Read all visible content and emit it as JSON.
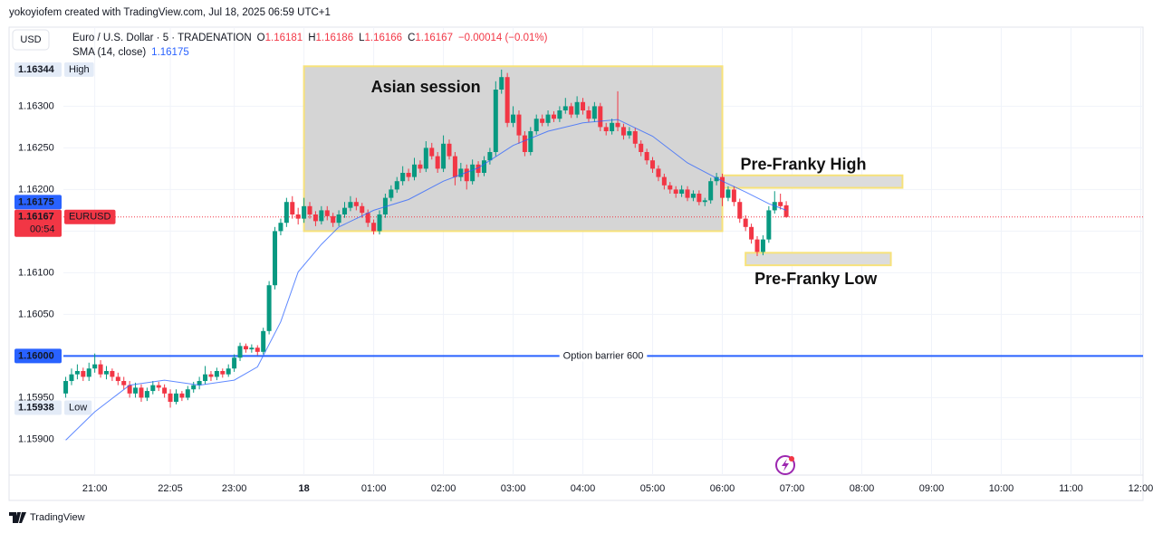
{
  "chart_data": {
    "type": "candlestick",
    "watermark": "yokoyiofem created with TradingView.com, Jul 18, 2025 06:59 UTC+1",
    "currency": "USD",
    "legend": {
      "symbol": "Euro / U.S. Dollar · 5 · TRADENATION",
      "ohlc": [
        {
          "key": "O",
          "value": 1.16181
        },
        {
          "key": "H",
          "value": 1.16186
        },
        {
          "key": "L",
          "value": 1.16166
        },
        {
          "key": "C",
          "value": 1.16167
        }
      ],
      "change": "−0.00014 (−0.01%)",
      "sma_value": 1.16175
    },
    "footer": "TradingView",
    "up_color": "#089981",
    "down_color": "#f23645",
    "grid": true,
    "xlim": [
      "20:33",
      "12:02"
    ],
    "ylim": [
      1.15857,
      1.16395
    ],
    "yticks": [
      {
        "value": 1.159,
        "label": "1.15900"
      },
      {
        "value": 1.1595,
        "label": "1.15950"
      },
      {
        "value": 1.16,
        "label": "1.16000"
      },
      {
        "value": 1.1605,
        "label": "1.16050"
      },
      {
        "value": 1.161,
        "label": "1.16100"
      },
      {
        "value": 1.1615,
        "label": "1.16150"
      },
      {
        "value": 1.162,
        "label": "1.16200"
      },
      {
        "value": 1.1625,
        "label": "1.16250"
      },
      {
        "value": 1.163,
        "label": "1.16300"
      }
    ],
    "xticks": [
      "21:00",
      "22:05",
      "23:00",
      {
        "value": "00:00",
        "label": "18"
      },
      "01:00",
      "02:00",
      "03:00",
      "04:00",
      "05:00",
      "06:00",
      "07:00",
      "08:00",
      "09:00",
      "10:00",
      "11:00",
      "12:00"
    ],
    "times": [
      "20:35",
      "20:40",
      "20:45",
      "20:50",
      "20:55",
      "21:00",
      "21:05",
      "21:10",
      "21:15",
      "21:20",
      "21:25",
      "21:30",
      "21:35",
      "21:40",
      "21:45",
      "21:50",
      "21:55",
      "22:00",
      "22:05",
      "22:10",
      "22:15",
      "22:20",
      "22:25",
      "22:30",
      "22:35",
      "22:40",
      "22:45",
      "22:50",
      "22:55",
      "23:00",
      "23:05",
      "23:10",
      "23:15",
      "23:20",
      "23:25",
      "23:30",
      "23:35",
      "23:40",
      "23:45",
      "23:50",
      "23:55",
      "00:00",
      "00:05",
      "00:10",
      "00:15",
      "00:20",
      "00:25",
      "00:30",
      "00:35",
      "00:40",
      "00:45",
      "00:50",
      "00:55",
      "01:00",
      "01:05",
      "01:10",
      "01:15",
      "01:20",
      "01:25",
      "01:30",
      "01:35",
      "01:40",
      "01:45",
      "01:50",
      "01:55",
      "02:00",
      "02:05",
      "02:10",
      "02:15",
      "02:20",
      "02:25",
      "02:30",
      "02:35",
      "02:40",
      "02:45",
      "02:50",
      "02:55",
      "03:00",
      "03:05",
      "03:10",
      "03:15",
      "03:20",
      "03:25",
      "03:30",
      "03:35",
      "03:40",
      "03:45",
      "03:50",
      "03:55",
      "04:00",
      "04:05",
      "04:10",
      "04:15",
      "04:20",
      "04:25",
      "04:30",
      "04:35",
      "04:40",
      "04:45",
      "04:50",
      "04:55",
      "05:00",
      "05:05",
      "05:10",
      "05:15",
      "05:20",
      "05:25",
      "05:30",
      "05:35",
      "05:40",
      "05:45",
      "05:50",
      "05:55",
      "06:00",
      "06:05",
      "06:10",
      "06:15",
      "06:20",
      "06:25",
      "06:30",
      "06:35",
      "06:40",
      "06:45",
      "06:50",
      "06:55"
    ],
    "ohlc": [
      [
        1.15955,
        1.15975,
        1.1595,
        1.1597
      ],
      [
        1.1597,
        1.15985,
        1.15965,
        1.15978
      ],
      [
        1.15978,
        1.1599,
        1.15972,
        1.15982
      ],
      [
        1.15982,
        1.15986,
        1.1597,
        1.15975
      ],
      [
        1.15975,
        1.15992,
        1.1597,
        1.15985
      ],
      [
        1.15985,
        1.16003,
        1.1598,
        1.1599
      ],
      [
        1.1599,
        1.15995,
        1.15974,
        1.15978
      ],
      [
        1.15978,
        1.15988,
        1.15972,
        1.15982
      ],
      [
        1.15982,
        1.15985,
        1.1597,
        1.15975
      ],
      [
        1.15975,
        1.1598,
        1.15965,
        1.1597
      ],
      [
        1.1597,
        1.15975,
        1.1596,
        1.15965
      ],
      [
        1.15965,
        1.1597,
        1.1595,
        1.15955
      ],
      [
        1.15955,
        1.15968,
        1.1595,
        1.15962
      ],
      [
        1.15962,
        1.15966,
        1.15945,
        1.1595
      ],
      [
        1.1595,
        1.15962,
        1.15946,
        1.15958
      ],
      [
        1.15958,
        1.1597,
        1.15954,
        1.15965
      ],
      [
        1.15965,
        1.15969,
        1.15958,
        1.15962
      ],
      [
        1.15962,
        1.15966,
        1.1595,
        1.15955
      ],
      [
        1.15955,
        1.1596,
        1.15938,
        1.15945
      ],
      [
        1.15945,
        1.1596,
        1.15942,
        1.15955
      ],
      [
        1.15955,
        1.15958,
        1.15946,
        1.1595
      ],
      [
        1.1595,
        1.15964,
        1.15947,
        1.1596
      ],
      [
        1.1596,
        1.15969,
        1.15956,
        1.15965
      ],
      [
        1.15965,
        1.15975,
        1.1596,
        1.1597
      ],
      [
        1.1597,
        1.15988,
        1.15966,
        1.15978
      ],
      [
        1.15978,
        1.15982,
        1.1597,
        1.15975
      ],
      [
        1.15975,
        1.15986,
        1.15971,
        1.15982
      ],
      [
        1.15982,
        1.15985,
        1.15974,
        1.15978
      ],
      [
        1.15978,
        1.1599,
        1.15975,
        1.15985
      ],
      [
        1.15985,
        1.16002,
        1.15981,
        1.15998
      ],
      [
        1.15998,
        1.16016,
        1.15994,
        1.16012
      ],
      [
        1.16012,
        1.16015,
        1.16004,
        1.16008
      ],
      [
        1.16008,
        1.16014,
        1.16004,
        1.1601
      ],
      [
        1.1601,
        1.16013,
        1.16001,
        1.16005
      ],
      [
        1.16005,
        1.16034,
        1.16002,
        1.1603
      ],
      [
        1.1603,
        1.1609,
        1.16026,
        1.16085
      ],
      [
        1.16085,
        1.16155,
        1.1608,
        1.1615
      ],
      [
        1.1615,
        1.16165,
        1.16145,
        1.1616
      ],
      [
        1.1616,
        1.1619,
        1.16155,
        1.16185
      ],
      [
        1.16185,
        1.16192,
        1.16165,
        1.1617
      ],
      [
        1.1617,
        1.16178,
        1.16158,
        1.16165
      ],
      [
        1.16165,
        1.1619,
        1.1616,
        1.1618
      ],
      [
        1.1618,
        1.16185,
        1.16165,
        1.1617
      ],
      [
        1.1617,
        1.16174,
        1.16156,
        1.16162
      ],
      [
        1.16162,
        1.1618,
        1.16158,
        1.16175
      ],
      [
        1.16175,
        1.1618,
        1.16163,
        1.16168
      ],
      [
        1.16168,
        1.16172,
        1.16155,
        1.1616
      ],
      [
        1.1616,
        1.16175,
        1.16156,
        1.1617
      ],
      [
        1.1617,
        1.16185,
        1.16166,
        1.16178
      ],
      [
        1.16178,
        1.16192,
        1.16174,
        1.16185
      ],
      [
        1.16185,
        1.1619,
        1.16175,
        1.1618
      ],
      [
        1.1618,
        1.16184,
        1.16166,
        1.16172
      ],
      [
        1.16172,
        1.16176,
        1.16155,
        1.1616
      ],
      [
        1.1616,
        1.16164,
        1.16146,
        1.1615
      ],
      [
        1.1615,
        1.16175,
        1.16146,
        1.1617
      ],
      [
        1.1617,
        1.16195,
        1.16166,
        1.1619
      ],
      [
        1.1619,
        1.16205,
        1.16186,
        1.162
      ],
      [
        1.162,
        1.16215,
        1.16196,
        1.1621
      ],
      [
        1.1621,
        1.16228,
        1.16205,
        1.1622
      ],
      [
        1.1622,
        1.16225,
        1.1621,
        1.16215
      ],
      [
        1.16215,
        1.16238,
        1.16211,
        1.1623
      ],
      [
        1.1623,
        1.16235,
        1.1622,
        1.16225
      ],
      [
        1.16225,
        1.16258,
        1.16221,
        1.1625
      ],
      [
        1.1625,
        1.16256,
        1.16236,
        1.1624
      ],
      [
        1.1624,
        1.16245,
        1.1622,
        1.16225
      ],
      [
        1.16225,
        1.16265,
        1.16221,
        1.16255
      ],
      [
        1.16255,
        1.1626,
        1.16236,
        1.1624
      ],
      [
        1.1624,
        1.16245,
        1.16205,
        1.16215
      ],
      [
        1.16215,
        1.16232,
        1.1621,
        1.16225
      ],
      [
        1.16225,
        1.1623,
        1.162,
        1.1621
      ],
      [
        1.1621,
        1.16236,
        1.16206,
        1.1623
      ],
      [
        1.1623,
        1.16234,
        1.16215,
        1.1622
      ],
      [
        1.1622,
        1.1624,
        1.16216,
        1.16235
      ],
      [
        1.16235,
        1.1625,
        1.1623,
        1.16245
      ],
      [
        1.16245,
        1.1633,
        1.1624,
        1.1632
      ],
      [
        1.1632,
        1.16344,
        1.16315,
        1.16335
      ],
      [
        1.16335,
        1.1634,
        1.16275,
        1.1628
      ],
      [
        1.1628,
        1.163,
        1.16275,
        1.1629
      ],
      [
        1.1629,
        1.16295,
        1.16255,
        1.16265
      ],
      [
        1.16265,
        1.1627,
        1.1624,
        1.16245
      ],
      [
        1.16245,
        1.16275,
        1.16241,
        1.1627
      ],
      [
        1.1627,
        1.1629,
        1.16266,
        1.16285
      ],
      [
        1.16285,
        1.1629,
        1.16276,
        1.1628
      ],
      [
        1.1628,
        1.16295,
        1.16276,
        1.1629
      ],
      [
        1.1629,
        1.16294,
        1.16281,
        1.16285
      ],
      [
        1.16285,
        1.163,
        1.16281,
        1.16295
      ],
      [
        1.16295,
        1.1631,
        1.16291,
        1.163
      ],
      [
        1.163,
        1.16304,
        1.16286,
        1.1629
      ],
      [
        1.1629,
        1.16312,
        1.16286,
        1.16305
      ],
      [
        1.16305,
        1.1631,
        1.1629,
        1.16295
      ],
      [
        1.16295,
        1.163,
        1.16281,
        1.16285
      ],
      [
        1.16285,
        1.16305,
        1.16281,
        1.163
      ],
      [
        1.163,
        1.16304,
        1.1627,
        1.16275
      ],
      [
        1.16275,
        1.1628,
        1.16265,
        1.1627
      ],
      [
        1.1627,
        1.16285,
        1.16266,
        1.1628
      ],
      [
        1.1628,
        1.16318,
        1.1627,
        1.16275
      ],
      [
        1.16275,
        1.16279,
        1.1626,
        1.16265
      ],
      [
        1.16265,
        1.16275,
        1.16261,
        1.1627
      ],
      [
        1.1627,
        1.16274,
        1.1625,
        1.16255
      ],
      [
        1.16255,
        1.16259,
        1.1624,
        1.16245
      ],
      [
        1.16245,
        1.16249,
        1.1623,
        1.16235
      ],
      [
        1.16235,
        1.16239,
        1.1622,
        1.16225
      ],
      [
        1.16225,
        1.16229,
        1.1621,
        1.16215
      ],
      [
        1.16215,
        1.16219,
        1.162,
        1.16205
      ],
      [
        1.16205,
        1.16209,
        1.16195,
        1.162
      ],
      [
        1.162,
        1.16204,
        1.1619,
        1.16195
      ],
      [
        1.16195,
        1.16205,
        1.16191,
        1.162
      ],
      [
        1.162,
        1.16204,
        1.16186,
        1.1619
      ],
      [
        1.1619,
        1.16199,
        1.16186,
        1.16195
      ],
      [
        1.16195,
        1.16199,
        1.16181,
        1.16185
      ],
      [
        1.16185,
        1.1619,
        1.1618,
        1.16187
      ],
      [
        1.16187,
        1.16214,
        1.16183,
        1.1621
      ],
      [
        1.1621,
        1.1622,
        1.16205,
        1.16215
      ],
      [
        1.16215,
        1.16219,
        1.1618,
        1.1619
      ],
      [
        1.1619,
        1.16204,
        1.16186,
        1.162
      ],
      [
        1.162,
        1.16204,
        1.1618,
        1.16185
      ],
      [
        1.16185,
        1.16189,
        1.1616,
        1.16165
      ],
      [
        1.16165,
        1.16169,
        1.1615,
        1.16155
      ],
      [
        1.16155,
        1.16159,
        1.16135,
        1.1614
      ],
      [
        1.1614,
        1.16144,
        1.1612,
        1.16125
      ],
      [
        1.16125,
        1.16145,
        1.16121,
        1.1614
      ],
      [
        1.1614,
        1.1618,
        1.16136,
        1.16175
      ],
      [
        1.16175,
        1.16198,
        1.16171,
        1.16185
      ],
      [
        1.16185,
        1.16195,
        1.16176,
        1.1618
      ],
      [
        1.16181,
        1.16186,
        1.16166,
        1.16167
      ]
    ],
    "sma": {
      "name": "SMA (14, close)",
      "color": "#2962ff",
      "x": [
        "20:35",
        "21:00",
        "21:30",
        "22:00",
        "22:30",
        "23:00",
        "23:20",
        "23:40",
        "23:55",
        "00:15",
        "00:30",
        "01:00",
        "01:30",
        "02:00",
        "02:30",
        "03:00",
        "03:30",
        "04:00",
        "04:30",
        "05:00",
        "05:30",
        "06:00",
        "06:20",
        "06:40",
        "06:55"
      ],
      "values": [
        1.15899,
        1.15933,
        1.15965,
        1.15971,
        1.15965,
        1.15971,
        1.15987,
        1.16041,
        1.16101,
        1.16134,
        1.16155,
        1.16175,
        1.16188,
        1.1621,
        1.16226,
        1.16253,
        1.1627,
        1.1628,
        1.16284,
        1.16264,
        1.16232,
        1.1621,
        1.16197,
        1.16183,
        1.16175
      ]
    },
    "price_labels": [
      {
        "value": 1.16344,
        "label": "1.16344",
        "tag": "High"
      },
      {
        "value": 1.15938,
        "label": "1.15938",
        "tag": "Low"
      },
      {
        "value": 1.16175,
        "label": "1.16175"
      },
      {
        "value": 1.16167,
        "label": "1.16167",
        "tag": "EURUSD",
        "countdown": "00:54"
      }
    ],
    "barrier": {
      "value": 1.16,
      "label": "1.16000",
      "text": "Option barrier 600",
      "color": "#2962ff"
    },
    "boxes": [
      {
        "text": "Asian session",
        "x": [
          "00:00",
          "06:00"
        ],
        "y": [
          1.16348,
          1.1615
        ]
      },
      {
        "text": "Pre-Franky High",
        "x": [
          "06:00",
          "08:35"
        ],
        "y": [
          1.16217,
          1.16202
        ]
      },
      {
        "text": "Pre-Franky Low",
        "x": [
          "06:20",
          "08:25"
        ],
        "y": [
          1.16124,
          1.16109
        ]
      }
    ]
  }
}
